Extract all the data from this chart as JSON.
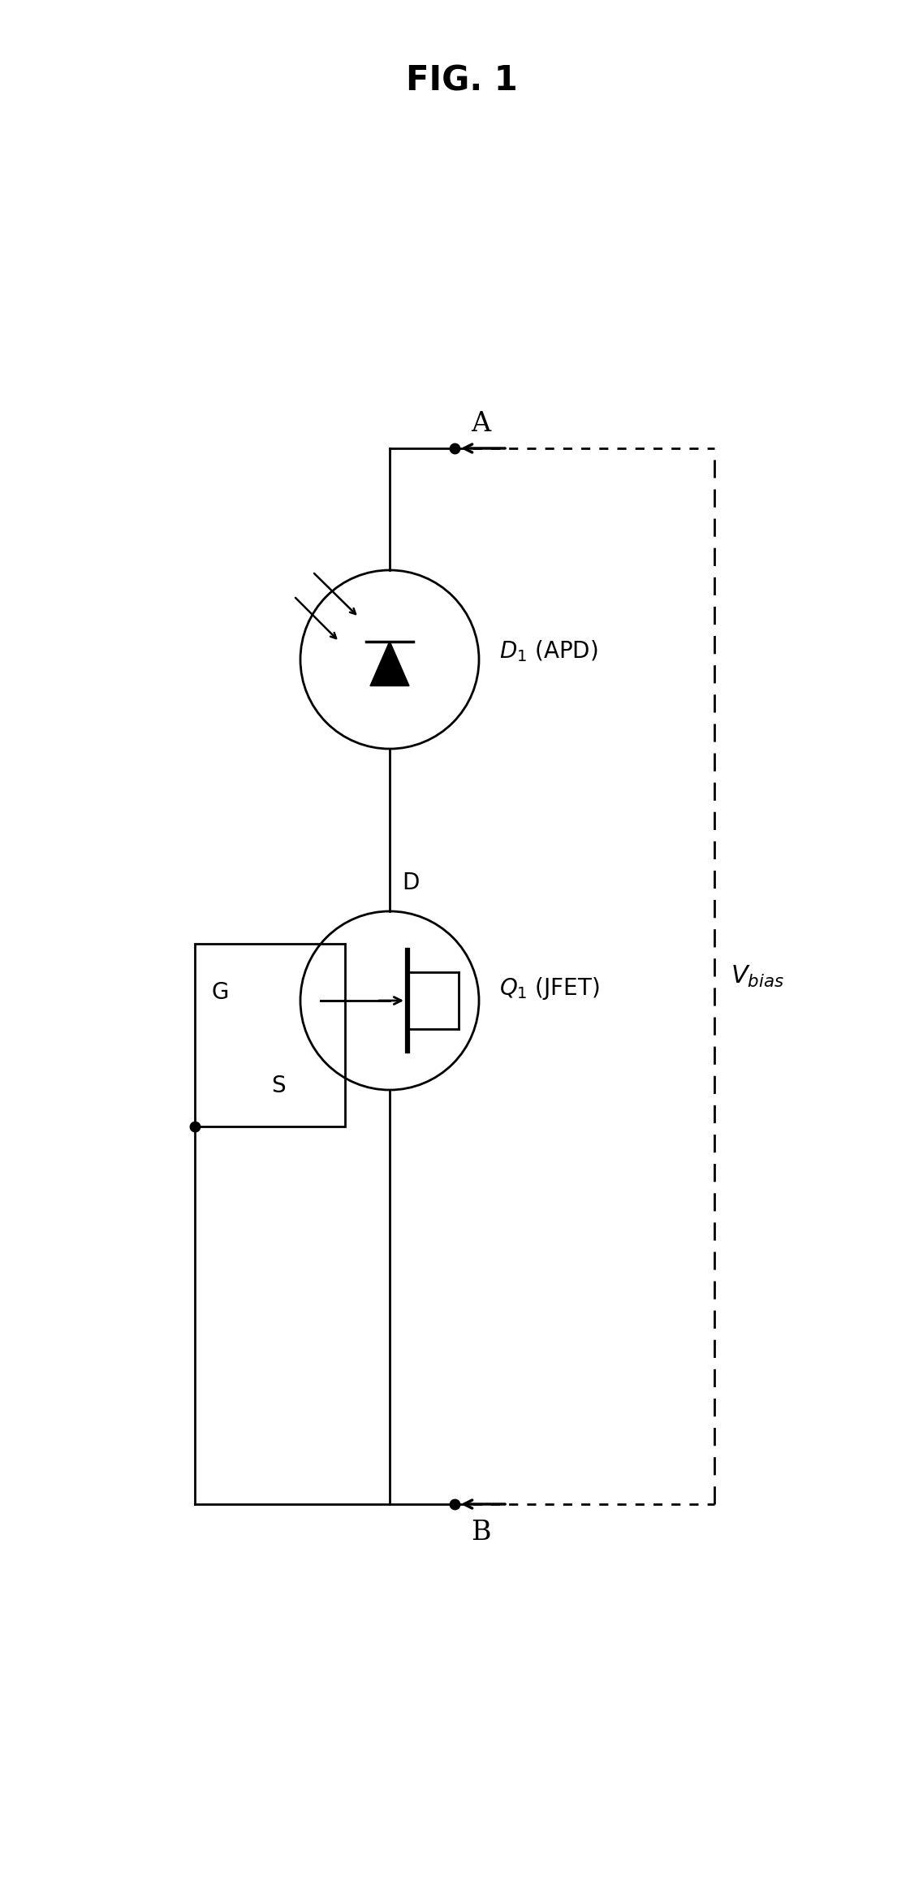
{
  "title": "FIG. 1",
  "title_fontsize": 30,
  "title_fontweight": "bold",
  "bg_color": "#ffffff",
  "line_color": "#000000",
  "fig_width": 11.37,
  "fig_height": 23.32,
  "label_A": "A",
  "label_B": "B",
  "label_D": "D",
  "label_S": "S",
  "label_G": "G",
  "label_D1_APD": "D",
  "label_D1_APD_sub": "1",
  "label_D1_APD_rest": " (APD)",
  "label_Q1_JFET": "Q",
  "label_Q1_sub": "1",
  "label_Q1_rest": " (JFET)",
  "label_Vbias_main": "V",
  "label_Vbias_sub": "bias",
  "font_size_large": 20,
  "font_size_small": 16
}
